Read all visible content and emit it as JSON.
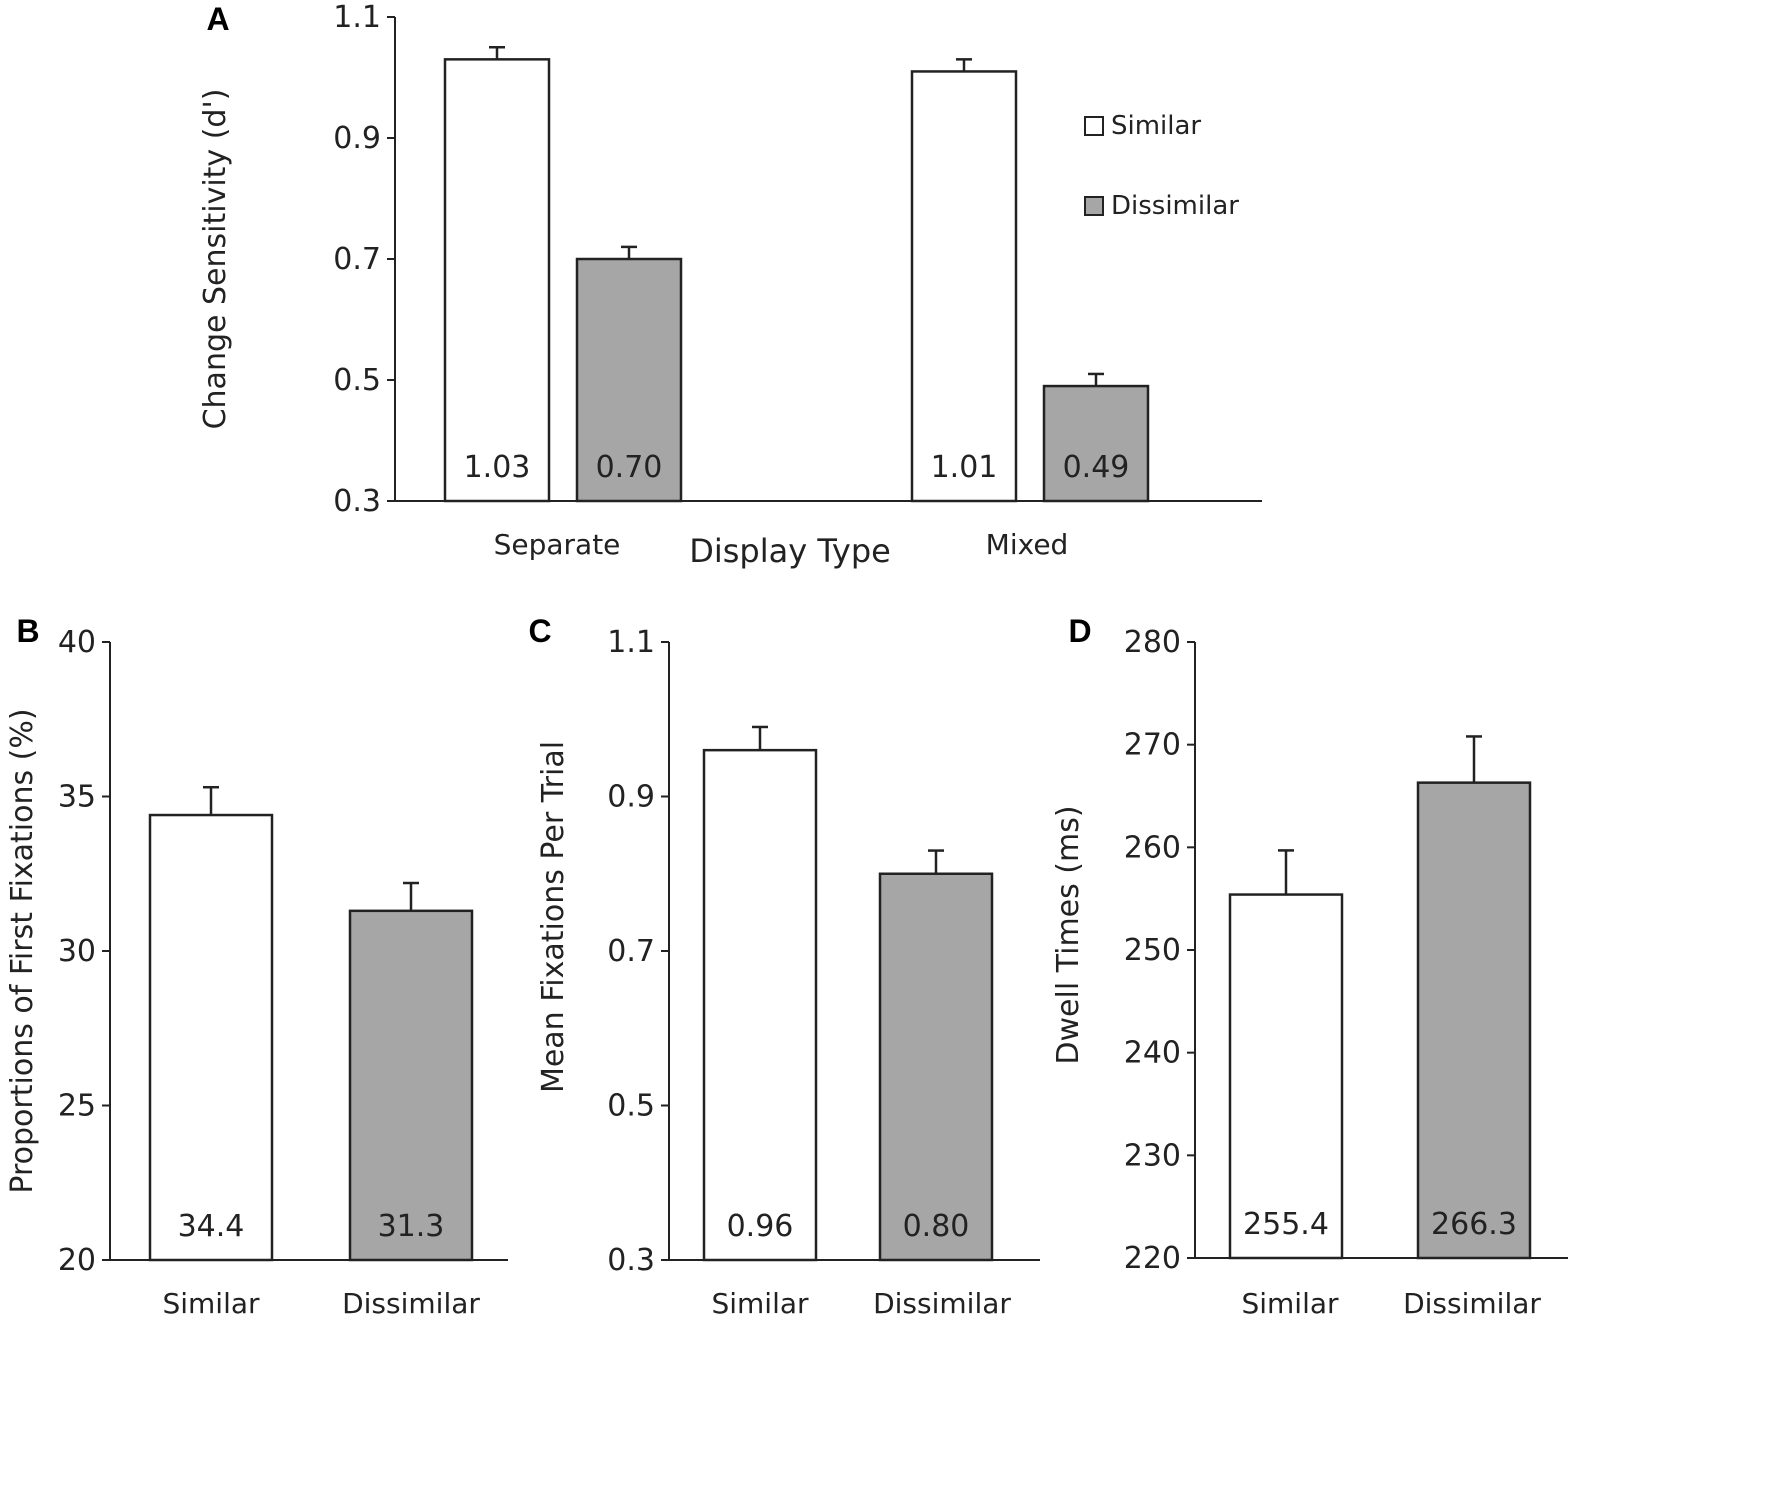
{
  "chart_data": [
    {
      "panel": "A",
      "type": "bar",
      "categories": [
        "Separate",
        "Mixed"
      ],
      "series": [
        {
          "name": "Similar",
          "values": [
            1.03,
            1.01
          ],
          "errors": [
            0.02,
            0.02
          ],
          "labels": [
            "1.03",
            "1.01"
          ]
        },
        {
          "name": "Dissimilar",
          "values": [
            0.7,
            0.49
          ],
          "errors": [
            0.02,
            0.02
          ],
          "labels": [
            "0.70",
            "0.49"
          ]
        }
      ],
      "xlabel": "Display Type",
      "ylabel": "Change Sensitivity (d')",
      "ylim": [
        0.3,
        1.1
      ],
      "yticks": [
        "0.3",
        "0.5",
        "0.7",
        "0.9",
        "1.1"
      ],
      "legend": "right",
      "grid": false
    },
    {
      "panel": "B",
      "type": "bar",
      "categories": [
        "Similar",
        "Dissimilar"
      ],
      "values": [
        34.4,
        31.3
      ],
      "errors": [
        0.9,
        0.9
      ],
      "labels": [
        "34.4",
        "31.3"
      ],
      "ylabel": "Proportions of First Fixations (%)",
      "ylim": [
        20,
        40
      ],
      "yticks": [
        "20",
        "25",
        "30",
        "35",
        "40"
      ],
      "grid": false
    },
    {
      "panel": "C",
      "type": "bar",
      "categories": [
        "Similar",
        "Dissimilar"
      ],
      "values": [
        0.96,
        0.8
      ],
      "errors": [
        0.03,
        0.03
      ],
      "labels": [
        "0.96",
        "0.80"
      ],
      "ylabel": "Mean Fixations Per Trial",
      "ylim": [
        0.3,
        1.1
      ],
      "yticks": [
        "0.3",
        "0.5",
        "0.7",
        "0.9",
        "1.1"
      ],
      "grid": false
    },
    {
      "panel": "D",
      "type": "bar",
      "categories": [
        "Similar",
        "Dissimilar"
      ],
      "values": [
        255.4,
        266.3
      ],
      "errors": [
        4.3,
        4.5
      ],
      "labels": [
        "255.4",
        "266.3"
      ],
      "ylabel": "Dwell Times (ms)",
      "ylim": [
        220,
        280
      ],
      "yticks": [
        "220",
        "230",
        "240",
        "250",
        "260",
        "270",
        "280"
      ],
      "grid": false
    }
  ],
  "colors": {
    "similar": "#ffffff",
    "dissimilar": "#a6a6a6",
    "axis": "#222222"
  }
}
